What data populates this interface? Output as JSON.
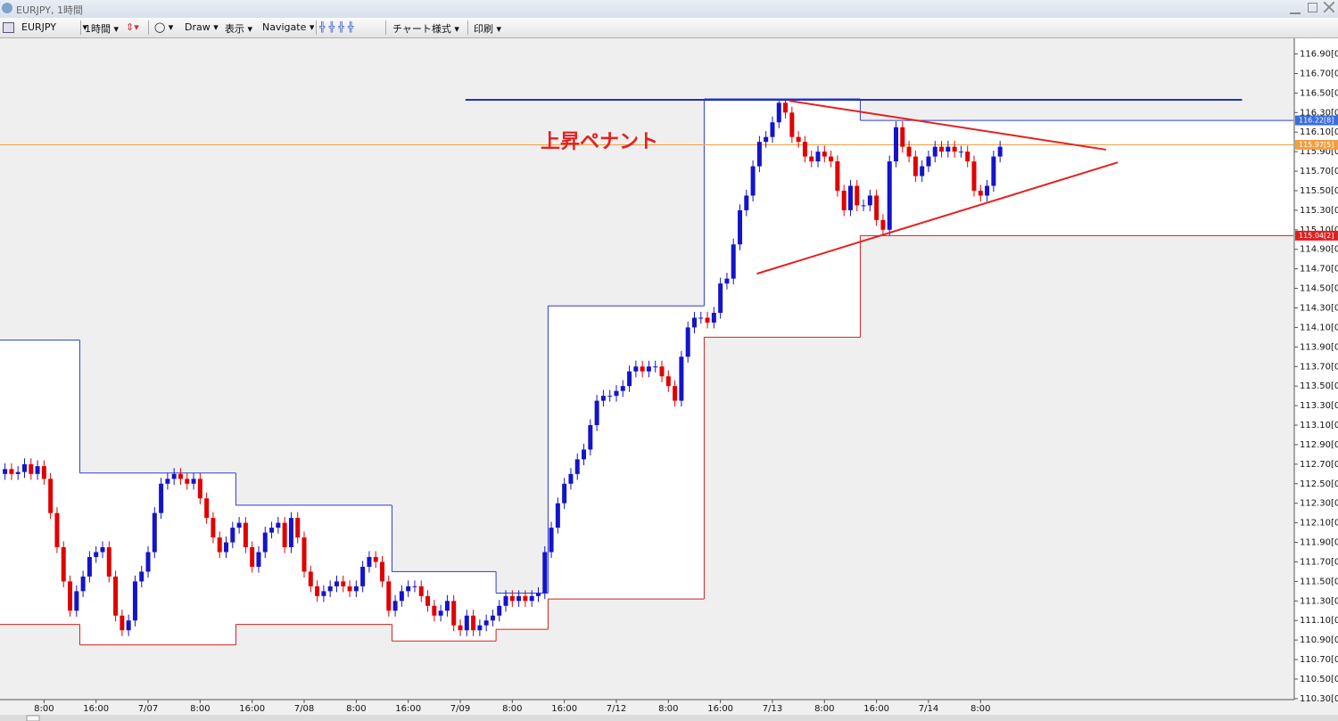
{
  "window": {
    "title": "EURJPY, 1時間"
  },
  "toolbar": {
    "items": [
      "EURJPY",
      "1時間",
      "Draw",
      "表示",
      "Navigate",
      "チャート様式",
      "印刷"
    ]
  },
  "chart_data": {
    "type": "candlestick",
    "x": [
      0,
      1,
      2,
      3,
      4,
      5,
      6,
      7,
      8,
      9,
      10,
      11,
      12,
      13,
      14,
      15,
      16,
      17,
      18,
      19,
      20,
      21,
      22,
      23,
      24,
      25,
      26,
      27,
      28,
      29,
      30,
      31,
      32,
      33,
      34,
      35,
      36,
      37,
      38,
      39,
      40,
      41,
      42,
      43,
      44,
      45,
      46,
      47,
      48,
      49,
      50,
      51,
      52,
      53,
      54,
      55,
      56,
      57,
      58,
      59,
      60,
      61,
      62,
      63,
      64,
      65,
      66,
      67,
      68,
      69,
      70,
      71,
      72,
      73,
      74,
      75,
      76,
      77,
      78,
      79,
      80,
      81,
      82,
      83,
      84,
      85,
      86,
      87,
      88,
      89,
      90,
      91,
      92,
      93,
      94,
      95,
      96,
      97,
      98,
      99,
      100,
      101,
      102,
      103,
      104,
      105,
      106,
      107,
      108,
      109,
      110,
      111,
      112,
      113,
      114,
      115,
      116,
      117,
      118,
      119,
      120,
      121,
      122,
      123,
      124,
      125,
      126,
      127,
      128,
      129,
      130,
      131,
      132,
      133,
      134,
      135,
      136,
      137,
      138,
      139,
      140,
      141,
      142,
      143,
      144,
      145,
      146,
      147,
      148,
      149,
      150,
      151,
      152,
      153
    ],
    "open": [
      112.6,
      112.65,
      112.6,
      112.62,
      112.7,
      112.6,
      112.68,
      112.55,
      112.2,
      111.85,
      111.5,
      111.2,
      111.4,
      111.55,
      111.75,
      111.8,
      111.85,
      111.55,
      111.15,
      111.0,
      111.1,
      111.5,
      111.6,
      111.8,
      112.2,
      112.5,
      112.55,
      112.6,
      112.55,
      112.5,
      112.55,
      112.35,
      112.15,
      111.95,
      111.8,
      111.9,
      112.05,
      112.1,
      111.85,
      111.65,
      111.8,
      112.0,
      112.05,
      112.1,
      111.85,
      112.15,
      111.95,
      111.6,
      111.45,
      111.35,
      111.4,
      111.45,
      111.5,
      111.45,
      111.4,
      111.45,
      111.65,
      111.75,
      111.7,
      111.5,
      111.2,
      111.3,
      111.4,
      111.45,
      111.45,
      111.35,
      111.25,
      111.15,
      111.2,
      111.3,
      111.05,
      111.0,
      111.15,
      111.0,
      111.05,
      111.1,
      111.15,
      111.25,
      111.35,
      111.3,
      111.35,
      111.3,
      111.35,
      111.38,
      111.8,
      112.05,
      112.3,
      112.5,
      112.6,
      112.75,
      112.85,
      113.1,
      113.35,
      113.4,
      113.4,
      113.45,
      113.5,
      113.65,
      113.7,
      113.65,
      113.7,
      113.7,
      113.6,
      113.5,
      113.35,
      113.8,
      114.1,
      114.2,
      114.2,
      114.15,
      114.25,
      114.55,
      114.6,
      114.95,
      115.3,
      115.45,
      115.75,
      116.0,
      116.05,
      116.2,
      116.4,
      116.3,
      116.05,
      116.0,
      115.85,
      115.8,
      115.9,
      115.85,
      115.8,
      115.5,
      115.3,
      115.55,
      115.35,
      115.35,
      115.45,
      115.2,
      115.1,
      115.8,
      116.15,
      115.95,
      115.85,
      115.65,
      115.75,
      115.85,
      115.95,
      115.9,
      115.95,
      115.9,
      115.9,
      115.8,
      115.5,
      115.45,
      115.55,
      115.85
    ],
    "high": [
      112.71,
      112.71,
      112.68,
      112.76,
      112.76,
      112.74,
      112.74,
      112.61,
      112.26,
      111.91,
      111.56,
      111.46,
      111.61,
      111.81,
      111.86,
      111.91,
      111.91,
      111.61,
      111.21,
      111.16,
      111.56,
      111.66,
      111.86,
      112.26,
      112.56,
      112.61,
      112.66,
      112.66,
      112.61,
      112.61,
      112.61,
      112.41,
      112.21,
      112.01,
      111.96,
      112.11,
      112.16,
      112.16,
      111.91,
      111.86,
      112.06,
      112.11,
      112.16,
      112.16,
      112.21,
      112.21,
      112.01,
      111.66,
      111.51,
      111.46,
      111.51,
      111.56,
      111.56,
      111.51,
      111.51,
      111.71,
      111.81,
      111.81,
      111.76,
      111.56,
      111.36,
      111.46,
      111.51,
      111.51,
      111.51,
      111.41,
      111.31,
      111.26,
      111.36,
      111.36,
      111.11,
      111.21,
      111.21,
      111.11,
      111.16,
      111.21,
      111.31,
      111.41,
      111.41,
      111.41,
      111.41,
      111.41,
      111.44,
      111.86,
      112.11,
      112.36,
      112.56,
      112.66,
      112.81,
      112.91,
      113.16,
      113.41,
      113.46,
      113.46,
      113.51,
      113.56,
      113.71,
      113.76,
      113.76,
      113.76,
      113.76,
      113.76,
      113.66,
      113.56,
      113.86,
      114.16,
      114.26,
      114.26,
      114.26,
      114.31,
      114.61,
      114.66,
      115.01,
      115.36,
      115.51,
      115.81,
      116.06,
      116.11,
      116.26,
      116.44,
      116.44,
      116.36,
      116.11,
      116.06,
      115.91,
      115.96,
      115.96,
      115.91,
      115.86,
      115.56,
      115.61,
      115.61,
      115.41,
      115.51,
      115.51,
      115.26,
      115.86,
      116.21,
      116.21,
      116.01,
      115.91,
      115.81,
      115.91,
      116.01,
      116.01,
      116.01,
      116.01,
      115.96,
      115.96,
      115.86,
      115.56,
      115.61,
      115.91,
      116.01
    ],
    "low": [
      112.54,
      112.54,
      112.54,
      112.56,
      112.54,
      112.54,
      112.49,
      112.14,
      111.79,
      111.44,
      111.14,
      111.14,
      111.34,
      111.49,
      111.69,
      111.74,
      111.49,
      111.09,
      110.94,
      110.94,
      111.04,
      111.44,
      111.54,
      111.74,
      112.14,
      112.44,
      112.49,
      112.49,
      112.44,
      112.44,
      112.29,
      112.09,
      111.89,
      111.74,
      111.74,
      111.84,
      111.99,
      111.79,
      111.59,
      111.59,
      111.74,
      111.94,
      111.99,
      111.79,
      111.79,
      111.89,
      111.54,
      111.39,
      111.29,
      111.29,
      111.34,
      111.39,
      111.39,
      111.34,
      111.34,
      111.39,
      111.59,
      111.64,
      111.44,
      111.14,
      111.14,
      111.24,
      111.34,
      111.39,
      111.29,
      111.19,
      111.09,
      111.09,
      111.14,
      110.99,
      110.94,
      110.94,
      110.94,
      110.94,
      110.99,
      111.04,
      111.09,
      111.19,
      111.24,
      111.24,
      111.24,
      111.24,
      111.29,
      111.32,
      111.74,
      111.99,
      112.24,
      112.44,
      112.54,
      112.69,
      112.79,
      113.04,
      113.29,
      113.34,
      113.34,
      113.39,
      113.44,
      113.59,
      113.59,
      113.59,
      113.64,
      113.54,
      113.44,
      113.29,
      113.29,
      113.74,
      114.04,
      114.14,
      114.09,
      114.09,
      114.19,
      114.49,
      114.54,
      114.89,
      115.24,
      115.39,
      115.69,
      115.94,
      115.99,
      116.14,
      116.24,
      115.99,
      115.94,
      115.79,
      115.74,
      115.74,
      115.79,
      115.74,
      115.44,
      115.24,
      115.24,
      115.29,
      115.29,
      115.29,
      115.14,
      115.04,
      115.04,
      115.74,
      115.89,
      115.79,
      115.59,
      115.59,
      115.69,
      115.79,
      115.84,
      115.84,
      115.84,
      115.84,
      115.74,
      115.44,
      115.39,
      115.39,
      115.49,
      115.79
    ],
    "close": [
      112.65,
      112.6,
      112.62,
      112.7,
      112.6,
      112.68,
      112.55,
      112.2,
      111.85,
      111.5,
      111.2,
      111.4,
      111.55,
      111.75,
      111.8,
      111.85,
      111.55,
      111.15,
      111.0,
      111.1,
      111.5,
      111.6,
      111.8,
      112.2,
      112.5,
      112.55,
      112.6,
      112.55,
      112.5,
      112.55,
      112.35,
      112.15,
      111.95,
      111.8,
      111.9,
      112.05,
      112.1,
      111.85,
      111.65,
      111.8,
      112.0,
      112.05,
      112.1,
      111.85,
      112.15,
      111.95,
      111.6,
      111.45,
      111.35,
      111.4,
      111.45,
      111.5,
      111.45,
      111.4,
      111.45,
      111.65,
      111.75,
      111.7,
      111.5,
      111.2,
      111.3,
      111.4,
      111.45,
      111.45,
      111.35,
      111.25,
      111.15,
      111.2,
      111.3,
      111.05,
      111.0,
      111.15,
      111.0,
      111.05,
      111.1,
      111.15,
      111.25,
      111.35,
      111.3,
      111.35,
      111.3,
      111.35,
      111.38,
      111.8,
      112.05,
      112.3,
      112.5,
      112.6,
      112.75,
      112.85,
      113.1,
      113.35,
      113.4,
      113.4,
      113.45,
      113.5,
      113.65,
      113.7,
      113.65,
      113.7,
      113.7,
      113.6,
      113.5,
      113.35,
      113.8,
      114.1,
      114.2,
      114.2,
      114.15,
      114.25,
      114.55,
      114.6,
      114.95,
      115.3,
      115.45,
      115.75,
      116.0,
      116.05,
      116.2,
      116.4,
      116.3,
      116.05,
      116.0,
      115.85,
      115.8,
      115.9,
      115.85,
      115.8,
      115.5,
      115.3,
      115.55,
      115.35,
      115.35,
      115.45,
      115.2,
      115.1,
      115.8,
      116.15,
      115.95,
      115.85,
      115.65,
      115.75,
      115.85,
      115.95,
      115.9,
      115.95,
      115.9,
      115.9,
      115.8,
      115.5,
      115.45,
      115.55,
      115.85,
      115.95
    ],
    "up_color": "#1414c8",
    "down_color": "#e00000",
    "xlim": [
      -0.77,
      198.1
    ],
    "ylim": [
      110.29,
      117.06
    ],
    "xticks": [
      {
        "value": 6,
        "label": "8:00"
      },
      {
        "value": 14,
        "label": "16:00"
      },
      {
        "value": 22,
        "label": "7/07"
      },
      {
        "value": 30,
        "label": "8:00"
      },
      {
        "value": 38,
        "label": "16:00"
      },
      {
        "value": 46,
        "label": "7/08"
      },
      {
        "value": 54,
        "label": "8:00"
      },
      {
        "value": 62,
        "label": "16:00"
      },
      {
        "value": 70,
        "label": "7/09"
      },
      {
        "value": 78,
        "label": "8:00"
      },
      {
        "value": 86,
        "label": "16:00"
      },
      {
        "value": 94,
        "label": "7/12"
      },
      {
        "value": 102,
        "label": "8:00"
      },
      {
        "value": 110,
        "label": "16:00"
      },
      {
        "value": 118,
        "label": "7/13"
      },
      {
        "value": 126,
        "label": "8:00"
      },
      {
        "value": 134,
        "label": "16:00"
      },
      {
        "value": 142,
        "label": "7/14"
      },
      {
        "value": 150,
        "label": "8:00"
      }
    ],
    "yticks": [
      {
        "value": 116.9,
        "label": "116.90[0]"
      },
      {
        "value": 116.7,
        "label": "116.70[0]"
      },
      {
        "value": 116.5,
        "label": "116.50[0]"
      },
      {
        "value": 116.3,
        "label": "116.30[0]"
      },
      {
        "value": 116.1,
        "label": "116.10[0]"
      },
      {
        "value": 115.9,
        "label": "115.90[0]"
      },
      {
        "value": 115.7,
        "label": "115.70[0]"
      },
      {
        "value": 115.5,
        "label": "115.50[0]"
      },
      {
        "value": 115.3,
        "label": "115.30[0]"
      },
      {
        "value": 115.1,
        "label": "115.10[0]"
      },
      {
        "value": 114.9,
        "label": "114.90[0]"
      },
      {
        "value": 114.7,
        "label": "114.70[0]"
      },
      {
        "value": 114.5,
        "label": "114.50[0]"
      },
      {
        "value": 114.3,
        "label": "114.30[0]"
      },
      {
        "value": 114.1,
        "label": "114.10[0]"
      },
      {
        "value": 113.9,
        "label": "113.90[0]"
      },
      {
        "value": 113.7,
        "label": "113.70[0]"
      },
      {
        "value": 113.5,
        "label": "113.50[0]"
      },
      {
        "value": 113.3,
        "label": "113.30[0]"
      },
      {
        "value": 113.1,
        "label": "113.10[0]"
      },
      {
        "value": 112.9,
        "label": "112.90[0]"
      },
      {
        "value": 112.7,
        "label": "112.70[0]"
      },
      {
        "value": 112.5,
        "label": "112.50[0]"
      },
      {
        "value": 112.3,
        "label": "112.30[0]"
      },
      {
        "value": 112.1,
        "label": "112.10[0]"
      },
      {
        "value": 111.9,
        "label": "111.90[0]"
      },
      {
        "value": 111.7,
        "label": "111.70[0]"
      },
      {
        "value": 111.5,
        "label": "111.50[0]"
      },
      {
        "value": 111.3,
        "label": "111.30[0]"
      },
      {
        "value": 111.1,
        "label": "111.10[0]"
      },
      {
        "value": 110.9,
        "label": "110.90[0]"
      },
      {
        "value": 110.7,
        "label": "110.70[0]"
      },
      {
        "value": 110.5,
        "label": "110.50[0]"
      },
      {
        "value": 110.3,
        "label": "110.30[0]"
      }
    ],
    "ranges": [
      {
        "start": -1.5,
        "end": 11.5,
        "high": 113.97,
        "low": 111.06
      },
      {
        "start": 11.5,
        "end": 35.5,
        "high": 112.61,
        "low": 110.85
      },
      {
        "start": 35.5,
        "end": 59.5,
        "high": 112.28,
        "low": 111.06
      },
      {
        "start": 59.5,
        "end": 75.5,
        "high": 111.6,
        "low": 110.89
      },
      {
        "start": 75.5,
        "end": 83.5,
        "high": 111.38,
        "low": 111.01
      },
      {
        "start": 83.5,
        "end": 107.5,
        "high": 114.32,
        "low": 111.32
      },
      {
        "start": 107.5,
        "end": 131.5,
        "high": 116.44,
        "low": 114.0
      },
      {
        "start": 131.5,
        "end": 198.1,
        "high": 116.22,
        "low": 115.04
      }
    ],
    "range_colors": {
      "high": "#2b3fd0",
      "low": "#d02020"
    },
    "trendlines": [
      {
        "x": [
          70.8,
          190.2
        ],
        "y": [
          116.43,
          116.43
        ],
        "color": "#2030c0"
      },
      {
        "x": [
          120.6,
          169.3
        ],
        "y": [
          116.42,
          115.92
        ],
        "color": "#e52020"
      },
      {
        "x": [
          115.6,
          171.1
        ],
        "y": [
          114.65,
          115.79
        ],
        "color": "#e52020"
      }
    ],
    "price_tags": [
      {
        "value": 116.22,
        "label": "116.22[8]",
        "color": "#3a6de0",
        "line": false
      },
      {
        "value": 115.97,
        "label": "115.97[5]",
        "color": "#f0a040",
        "line": true
      },
      {
        "value": 115.04,
        "label": "115.04[2]",
        "color": "#e02020",
        "line": false
      }
    ],
    "annotations": [
      {
        "text": "上昇ペナント",
        "color": "#e52020"
      }
    ]
  }
}
